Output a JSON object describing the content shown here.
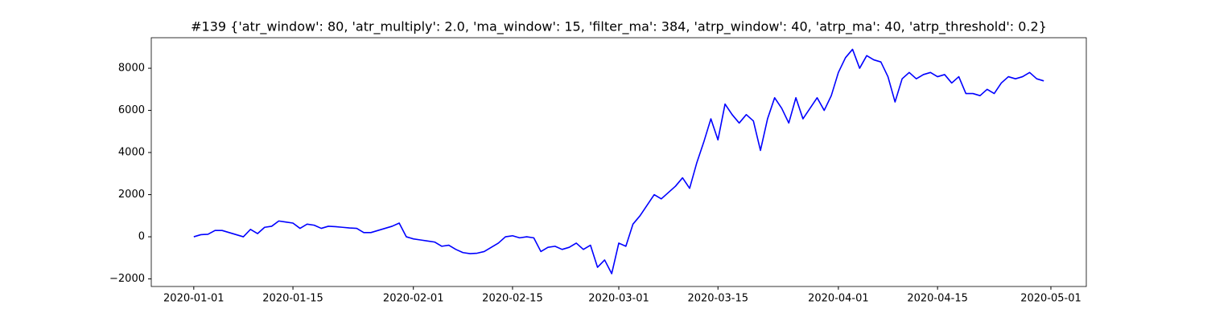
{
  "chart_data": {
    "type": "line",
    "title": "#139 {'atr_window': 80, 'atr_multiply': 2.0, 'ma_window': 15, 'filter_ma': 384, 'atrp_window': 40, 'atrp_ma': 40, 'atrp_threshold': 0.2}",
    "x": [
      "2020-01-01",
      "2020-01-02",
      "2020-01-03",
      "2020-01-04",
      "2020-01-05",
      "2020-01-06",
      "2020-01-07",
      "2020-01-08",
      "2020-01-09",
      "2020-01-10",
      "2020-01-11",
      "2020-01-12",
      "2020-01-13",
      "2020-01-14",
      "2020-01-15",
      "2020-01-16",
      "2020-01-17",
      "2020-01-18",
      "2020-01-19",
      "2020-01-20",
      "2020-01-21",
      "2020-01-22",
      "2020-01-23",
      "2020-01-24",
      "2020-01-25",
      "2020-01-26",
      "2020-01-27",
      "2020-01-28",
      "2020-01-29",
      "2020-01-30",
      "2020-01-31",
      "2020-02-01",
      "2020-02-02",
      "2020-02-03",
      "2020-02-04",
      "2020-02-05",
      "2020-02-06",
      "2020-02-07",
      "2020-02-08",
      "2020-02-09",
      "2020-02-10",
      "2020-02-11",
      "2020-02-12",
      "2020-02-13",
      "2020-02-14",
      "2020-02-15",
      "2020-02-16",
      "2020-02-17",
      "2020-02-18",
      "2020-02-19",
      "2020-02-20",
      "2020-02-21",
      "2020-02-22",
      "2020-02-23",
      "2020-02-24",
      "2020-02-25",
      "2020-02-26",
      "2020-02-27",
      "2020-02-28",
      "2020-02-29",
      "2020-03-01",
      "2020-03-02",
      "2020-03-03",
      "2020-03-04",
      "2020-03-05",
      "2020-03-06",
      "2020-03-07",
      "2020-03-08",
      "2020-03-09",
      "2020-03-10",
      "2020-03-11",
      "2020-03-12",
      "2020-03-13",
      "2020-03-14",
      "2020-03-15",
      "2020-03-16",
      "2020-03-17",
      "2020-03-18",
      "2020-03-19",
      "2020-03-20",
      "2020-03-21",
      "2020-03-22",
      "2020-03-23",
      "2020-03-24",
      "2020-03-25",
      "2020-03-26",
      "2020-03-27",
      "2020-03-28",
      "2020-03-29",
      "2020-03-30",
      "2020-03-31",
      "2020-04-01",
      "2020-04-02",
      "2020-04-03",
      "2020-04-04",
      "2020-04-05",
      "2020-04-06",
      "2020-04-07",
      "2020-04-08",
      "2020-04-09",
      "2020-04-10",
      "2020-04-11",
      "2020-04-12",
      "2020-04-13",
      "2020-04-14",
      "2020-04-15",
      "2020-04-16",
      "2020-04-17",
      "2020-04-18",
      "2020-04-19",
      "2020-04-20",
      "2020-04-21",
      "2020-04-22",
      "2020-04-23",
      "2020-04-24",
      "2020-04-25",
      "2020-04-26",
      "2020-04-27",
      "2020-04-28",
      "2020-04-29",
      "2020-04-30"
    ],
    "series": [
      {
        "color": "#0000ff",
        "values": [
          0,
          100,
          120,
          300,
          300,
          200,
          100,
          0,
          350,
          150,
          450,
          500,
          750,
          700,
          650,
          400,
          600,
          550,
          400,
          500,
          480,
          450,
          420,
          400,
          200,
          200,
          300,
          400,
          500,
          650,
          0,
          -100,
          -150,
          -200,
          -250,
          -450,
          -400,
          -600,
          -750,
          -800,
          -780,
          -700,
          -500,
          -300,
          0,
          50,
          -50,
          0,
          -50,
          -700,
          -500,
          -450,
          -600,
          -500,
          -300,
          -600,
          -400,
          -1450,
          -1100,
          -1750,
          -300,
          -450,
          600,
          1000,
          1500,
          2000,
          1800,
          2100,
          2400,
          2800,
          2300,
          3500,
          4500,
          5600,
          4600,
          6300,
          5800,
          5400,
          5800,
          5500,
          4100,
          5600,
          6600,
          6100,
          5400,
          6600,
          5600,
          6100,
          6600,
          6000,
          6700,
          7800,
          8500,
          8900,
          8000,
          8600,
          8400,
          8300,
          7600,
          6400,
          7500,
          7800,
          7500,
          7700,
          7800,
          7600,
          7700,
          7300,
          7600,
          6800,
          6800,
          6700,
          7000,
          6800,
          7300,
          7600,
          7500,
          7600,
          7800,
          7500,
          7400
        ]
      }
    ],
    "xlim": [
      "2019-12-26",
      "2020-05-06"
    ],
    "xticks": [
      "2020-01-01",
      "2020-01-15",
      "2020-02-01",
      "2020-02-15",
      "2020-03-01",
      "2020-03-15",
      "2020-04-01",
      "2020-04-15",
      "2020-05-01"
    ],
    "ylim": [
      -2360,
      9450
    ],
    "yticks": [
      {
        "value": -2000,
        "label": "−2000"
      },
      0,
      2000,
      4000,
      6000,
      8000
    ]
  }
}
